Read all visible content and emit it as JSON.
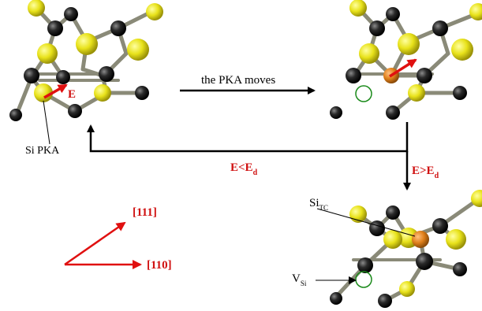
{
  "labels": {
    "energy_vector": "E",
    "si_pka": "Si PKA",
    "pka_moves": "the PKA moves",
    "e_lt_ed": {
      "main": "E<E",
      "sub": "d"
    },
    "e_gt_ed": {
      "main": "E>E",
      "sub": "d"
    },
    "si_tc": {
      "main": "Si",
      "sub": "TC"
    },
    "v_si": {
      "main": "V",
      "sub": "Si"
    },
    "dir_111": "[111]",
    "dir_110": "[110]"
  },
  "colors": {
    "silicon": "#e8e21a",
    "carbon": "#1a1a1a",
    "pka": "#e0801a",
    "bond": "#8a8a78",
    "arrow_red": "#e01010",
    "vacancy_ring": "#1a8a1a",
    "text_red": "#d01010",
    "text_black": "#000000"
  }
}
